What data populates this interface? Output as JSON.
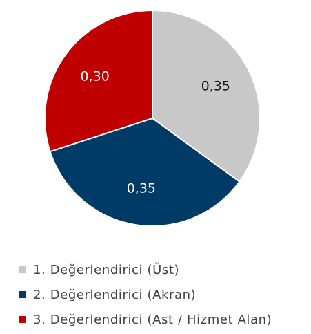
{
  "chart_data": {
    "type": "pie",
    "start_angle_deg": 0,
    "direction": "clockwise",
    "slices": [
      {
        "label": "1. Değerlendirici (Üst)",
        "value": 0.35,
        "display": "0,35",
        "color": "#c8c8c8",
        "label_color": "#1a1a1a"
      },
      {
        "label": "2. Değerlendirici (Akran)",
        "value": 0.35,
        "display": "0,35",
        "color": "#003a66",
        "label_color": "#ffffff"
      },
      {
        "label": "3. Değerlendirici (Ast / Hizmet Alan)",
        "value": 0.3,
        "display": "0,30",
        "color": "#c00000",
        "label_color": "#ffffff"
      }
    ],
    "legend_position": "bottom"
  }
}
